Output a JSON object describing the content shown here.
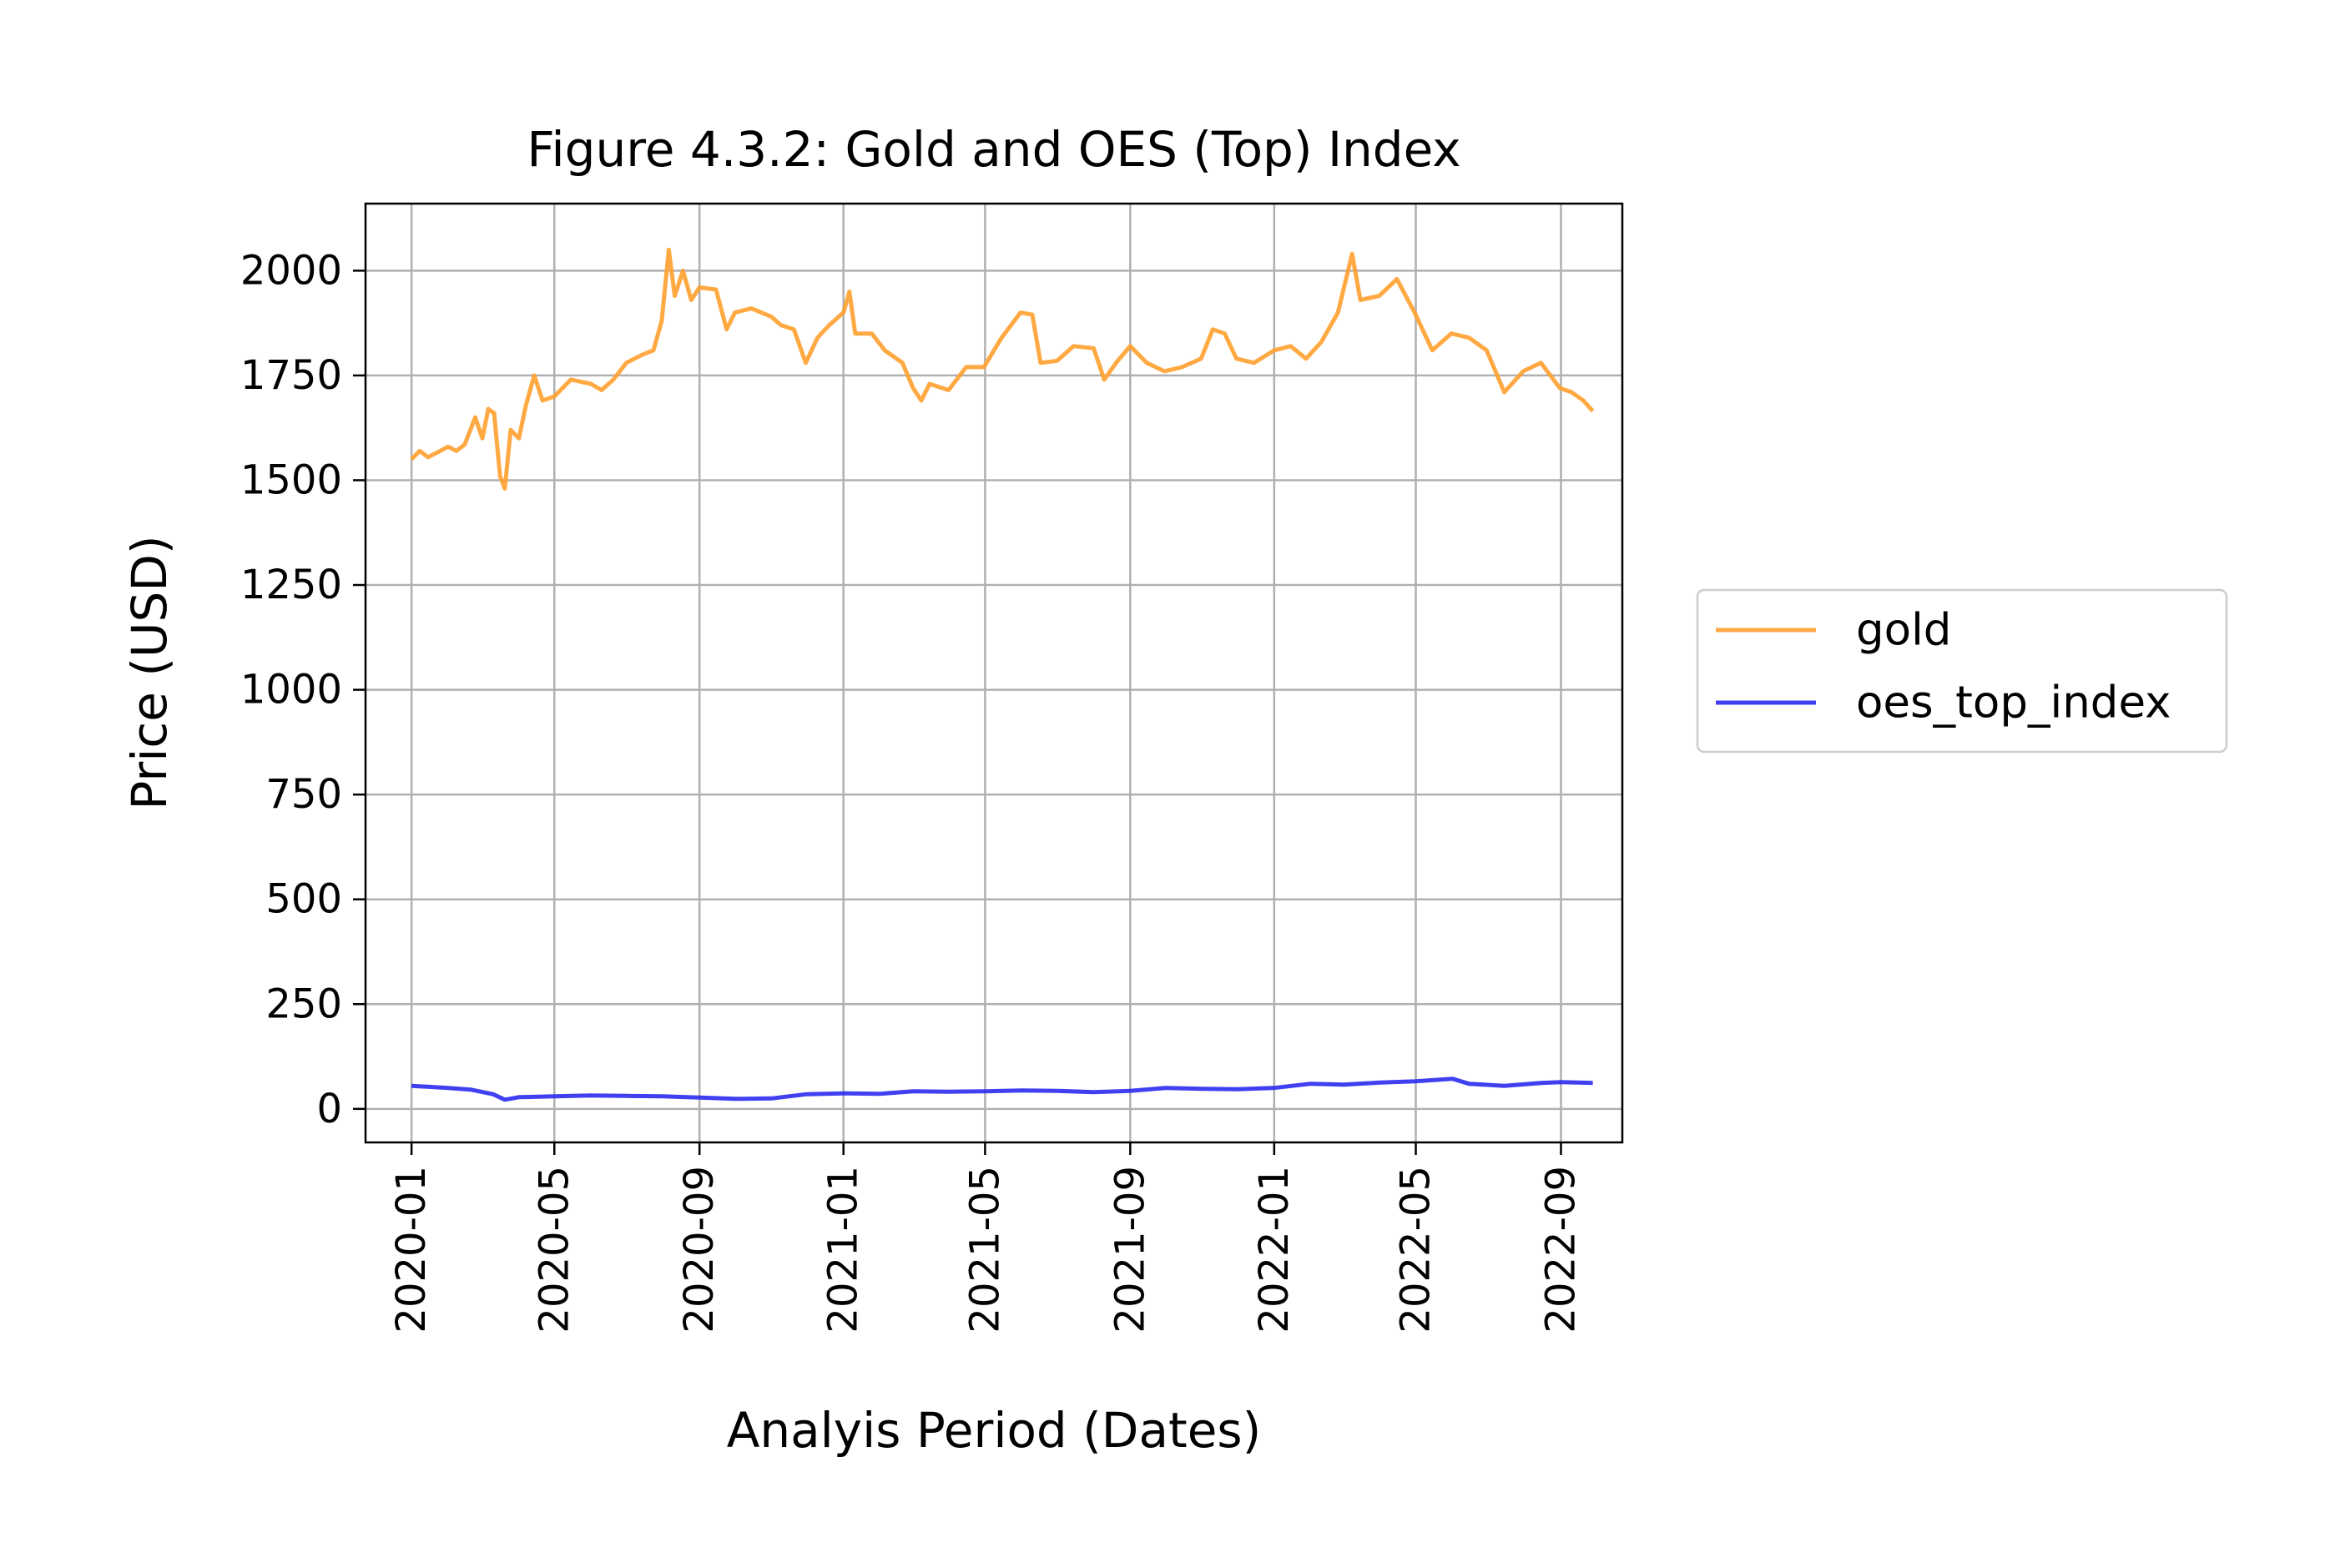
{
  "chart_data": {
    "type": "line",
    "title": "Figure 4.3.2: Gold and OES (Top) Index",
    "xlabel": "Analyis Period (Dates)",
    "ylabel": "Price (USD)",
    "x_ticks": [
      "2020-01",
      "2020-05",
      "2020-09",
      "2021-01",
      "2021-05",
      "2021-09",
      "2022-01",
      "2022-05",
      "2022-09"
    ],
    "x_range": [
      "2019-11-23",
      "2022-10-23"
    ],
    "y_ticks": [
      "0",
      "250",
      "500",
      "750",
      "1000",
      "1250",
      "1500",
      "1750",
      "2000"
    ],
    "ylim": [
      -80,
      2160
    ],
    "grid": true,
    "legend_position": "right-outside",
    "series": [
      {
        "name": "gold",
        "color": "#ffa02f",
        "points": [
          [
            "2020-01-01",
            1550
          ],
          [
            "2020-01-08",
            1570
          ],
          [
            "2020-01-15",
            1555
          ],
          [
            "2020-01-22",
            1565
          ],
          [
            "2020-02-01",
            1580
          ],
          [
            "2020-02-08",
            1570
          ],
          [
            "2020-02-15",
            1585
          ],
          [
            "2020-02-24",
            1650
          ],
          [
            "2020-03-01",
            1600
          ],
          [
            "2020-03-06",
            1670
          ],
          [
            "2020-03-11",
            1660
          ],
          [
            "2020-03-16",
            1510
          ],
          [
            "2020-03-20",
            1480
          ],
          [
            "2020-03-25",
            1620
          ],
          [
            "2020-04-01",
            1600
          ],
          [
            "2020-04-07",
            1680
          ],
          [
            "2020-04-14",
            1750
          ],
          [
            "2020-04-21",
            1690
          ],
          [
            "2020-05-01",
            1700
          ],
          [
            "2020-05-15",
            1740
          ],
          [
            "2020-06-01",
            1730
          ],
          [
            "2020-06-10",
            1715
          ],
          [
            "2020-06-20",
            1740
          ],
          [
            "2020-07-01",
            1780
          ],
          [
            "2020-07-15",
            1800
          ],
          [
            "2020-07-24",
            1810
          ],
          [
            "2020-07-31",
            1880
          ],
          [
            "2020-08-06",
            2050
          ],
          [
            "2020-08-11",
            1940
          ],
          [
            "2020-08-18",
            2000
          ],
          [
            "2020-08-25",
            1930
          ],
          [
            "2020-09-01",
            1960
          ],
          [
            "2020-09-15",
            1955
          ],
          [
            "2020-09-24",
            1860
          ],
          [
            "2020-10-01",
            1900
          ],
          [
            "2020-10-15",
            1910
          ],
          [
            "2020-11-01",
            1890
          ],
          [
            "2020-11-09",
            1870
          ],
          [
            "2020-11-20",
            1860
          ],
          [
            "2020-11-30",
            1780
          ],
          [
            "2020-12-10",
            1840
          ],
          [
            "2020-12-20",
            1870
          ],
          [
            "2021-01-01",
            1900
          ],
          [
            "2021-01-06",
            1950
          ],
          [
            "2021-01-11",
            1850
          ],
          [
            "2021-01-25",
            1850
          ],
          [
            "2021-02-05",
            1810
          ],
          [
            "2021-02-20",
            1780
          ],
          [
            "2021-03-01",
            1720
          ],
          [
            "2021-03-08",
            1690
          ],
          [
            "2021-03-15",
            1730
          ],
          [
            "2021-03-31",
            1715
          ],
          [
            "2021-04-15",
            1770
          ],
          [
            "2021-04-30",
            1770
          ],
          [
            "2021-05-15",
            1840
          ],
          [
            "2021-05-31",
            1900
          ],
          [
            "2021-06-10",
            1895
          ],
          [
            "2021-06-17",
            1780
          ],
          [
            "2021-07-01",
            1785
          ],
          [
            "2021-07-15",
            1820
          ],
          [
            "2021-08-01",
            1815
          ],
          [
            "2021-08-10",
            1740
          ],
          [
            "2021-08-20",
            1780
          ],
          [
            "2021-09-01",
            1820
          ],
          [
            "2021-09-15",
            1780
          ],
          [
            "2021-09-30",
            1760
          ],
          [
            "2021-10-15",
            1770
          ],
          [
            "2021-10-31",
            1790
          ],
          [
            "2021-11-10",
            1860
          ],
          [
            "2021-11-20",
            1850
          ],
          [
            "2021-11-30",
            1790
          ],
          [
            "2021-12-15",
            1780
          ],
          [
            "2022-01-01",
            1810
          ],
          [
            "2022-01-15",
            1820
          ],
          [
            "2022-01-28",
            1790
          ],
          [
            "2022-02-10",
            1830
          ],
          [
            "2022-02-24",
            1900
          ],
          [
            "2022-03-08",
            2040
          ],
          [
            "2022-03-15",
            1930
          ],
          [
            "2022-03-31",
            1940
          ],
          [
            "2022-04-15",
            1980
          ],
          [
            "2022-04-30",
            1900
          ],
          [
            "2022-05-15",
            1810
          ],
          [
            "2022-05-31",
            1850
          ],
          [
            "2022-06-15",
            1840
          ],
          [
            "2022-06-30",
            1810
          ],
          [
            "2022-07-15",
            1710
          ],
          [
            "2022-07-31",
            1760
          ],
          [
            "2022-08-15",
            1780
          ],
          [
            "2022-08-31",
            1720
          ],
          [
            "2022-09-10",
            1710
          ],
          [
            "2022-09-20",
            1690
          ],
          [
            "2022-09-28",
            1665
          ]
        ]
      },
      {
        "name": "oes_top_index",
        "color": "#2b2bf0",
        "points": [
          [
            "2020-01-01",
            55
          ],
          [
            "2020-02-01",
            50
          ],
          [
            "2020-02-20",
            46
          ],
          [
            "2020-03-10",
            35
          ],
          [
            "2020-03-20",
            22
          ],
          [
            "2020-04-01",
            28
          ],
          [
            "2020-05-01",
            30
          ],
          [
            "2020-06-01",
            32
          ],
          [
            "2020-07-01",
            31
          ],
          [
            "2020-08-01",
            30
          ],
          [
            "2020-09-01",
            27
          ],
          [
            "2020-10-01",
            24
          ],
          [
            "2020-11-01",
            25
          ],
          [
            "2020-12-01",
            35
          ],
          [
            "2021-01-01",
            37
          ],
          [
            "2021-02-01",
            36
          ],
          [
            "2021-03-01",
            42
          ],
          [
            "2021-04-01",
            41
          ],
          [
            "2021-05-01",
            42
          ],
          [
            "2021-06-01",
            44
          ],
          [
            "2021-07-01",
            43
          ],
          [
            "2021-08-01",
            40
          ],
          [
            "2021-09-01",
            43
          ],
          [
            "2021-10-01",
            50
          ],
          [
            "2021-11-01",
            48
          ],
          [
            "2021-12-01",
            47
          ],
          [
            "2022-01-01",
            50
          ],
          [
            "2022-02-01",
            60
          ],
          [
            "2022-03-01",
            58
          ],
          [
            "2022-04-01",
            63
          ],
          [
            "2022-05-01",
            66
          ],
          [
            "2022-06-01",
            72
          ],
          [
            "2022-06-15",
            60
          ],
          [
            "2022-07-15",
            55
          ],
          [
            "2022-08-15",
            62
          ],
          [
            "2022-09-01",
            64
          ],
          [
            "2022-09-28",
            62
          ]
        ]
      }
    ]
  }
}
